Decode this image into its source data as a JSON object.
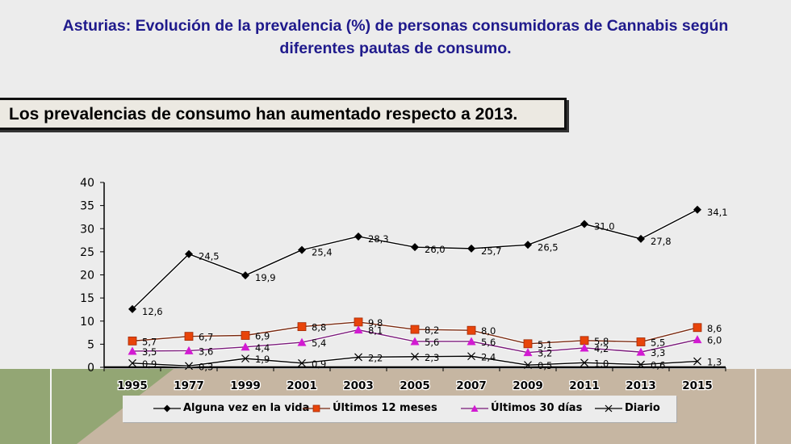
{
  "title_line1": "Asturias: Evolución de la prevalencia (%) de personas consumidoras de Cannabis según",
  "title_line2": "diferentes pautas de consumo.",
  "subtitle": "Los prevalencias de consumo han aumentado respecto a 2013.",
  "colors": {
    "title": "#1f1a8c",
    "alguna": "#000000",
    "ultimos12": "#e8440a",
    "ultimos12_line": "#7a2a10",
    "ultimos30": "#d21ad2",
    "ultimos30_line": "#7a1a7a",
    "diario": "#000000"
  },
  "chart_data": {
    "type": "line",
    "title": "Asturias: Evolución de la prevalencia (%) de personas consumidoras de Cannabis según diferentes pautas de consumo.",
    "xlabel": "",
    "ylabel": "",
    "categories": [
      "1995",
      "1977",
      "1999",
      "2001",
      "2003",
      "2005",
      "2007",
      "2009",
      "2011",
      "2013",
      "2015"
    ],
    "ylim": [
      0,
      40
    ],
    "yticks": [
      0,
      5,
      10,
      15,
      20,
      25,
      30,
      35,
      40
    ],
    "grid": false,
    "legend_position": "bottom",
    "series": [
      {
        "name": "Alguna vez en la vida",
        "marker": "diamond",
        "values": [
          12.6,
          24.5,
          19.9,
          25.4,
          28.3,
          26.0,
          25.7,
          26.5,
          31.0,
          27.8,
          34.1
        ],
        "labels": [
          "12,6",
          "24,5",
          "19,9",
          "25,4",
          "28,3",
          "26,0",
          "25,7",
          "26,5",
          "31,0",
          "27,8",
          "34,1"
        ]
      },
      {
        "name": "Últimos 12 meses",
        "marker": "square",
        "values": [
          5.7,
          6.7,
          6.9,
          8.8,
          9.8,
          8.2,
          8.0,
          5.1,
          5.8,
          5.5,
          8.6
        ],
        "labels": [
          "5,7",
          "6,7",
          "6,9",
          "8,8",
          "9,8",
          "8,2",
          "8,0",
          "5,1",
          "5,8",
          "5,5",
          "8,6"
        ]
      },
      {
        "name": "Últimos 30 días",
        "marker": "triangle",
        "values": [
          3.5,
          3.6,
          4.4,
          5.4,
          8.1,
          5.6,
          5.6,
          3.2,
          4.2,
          3.3,
          6.0
        ],
        "labels": [
          "3,5",
          "3,6",
          "4,4",
          "5,4",
          "8,1",
          "5,6",
          "5,6",
          "3,2",
          "4,2",
          "3,3",
          "6,0"
        ]
      },
      {
        "name": "Diario",
        "marker": "x",
        "values": [
          0.9,
          0.3,
          1.9,
          0.9,
          2.2,
          2.3,
          2.4,
          0.5,
          1.0,
          0.6,
          1.3
        ],
        "labels": [
          "0,9",
          "0,3",
          "1,9",
          "0,9",
          "2,2",
          "2,3",
          "2,4",
          "0,5",
          "1,0",
          "0,6",
          "1,3"
        ]
      }
    ]
  },
  "legend": [
    {
      "label": "Alguna vez en la vida",
      "icon": "diamond-marker"
    },
    {
      "label": "Últimos 12 meses",
      "icon": "square-marker"
    },
    {
      "label": "Últimos 30 días",
      "icon": "triangle-marker"
    },
    {
      "label": "Diario",
      "icon": "x-marker"
    }
  ]
}
